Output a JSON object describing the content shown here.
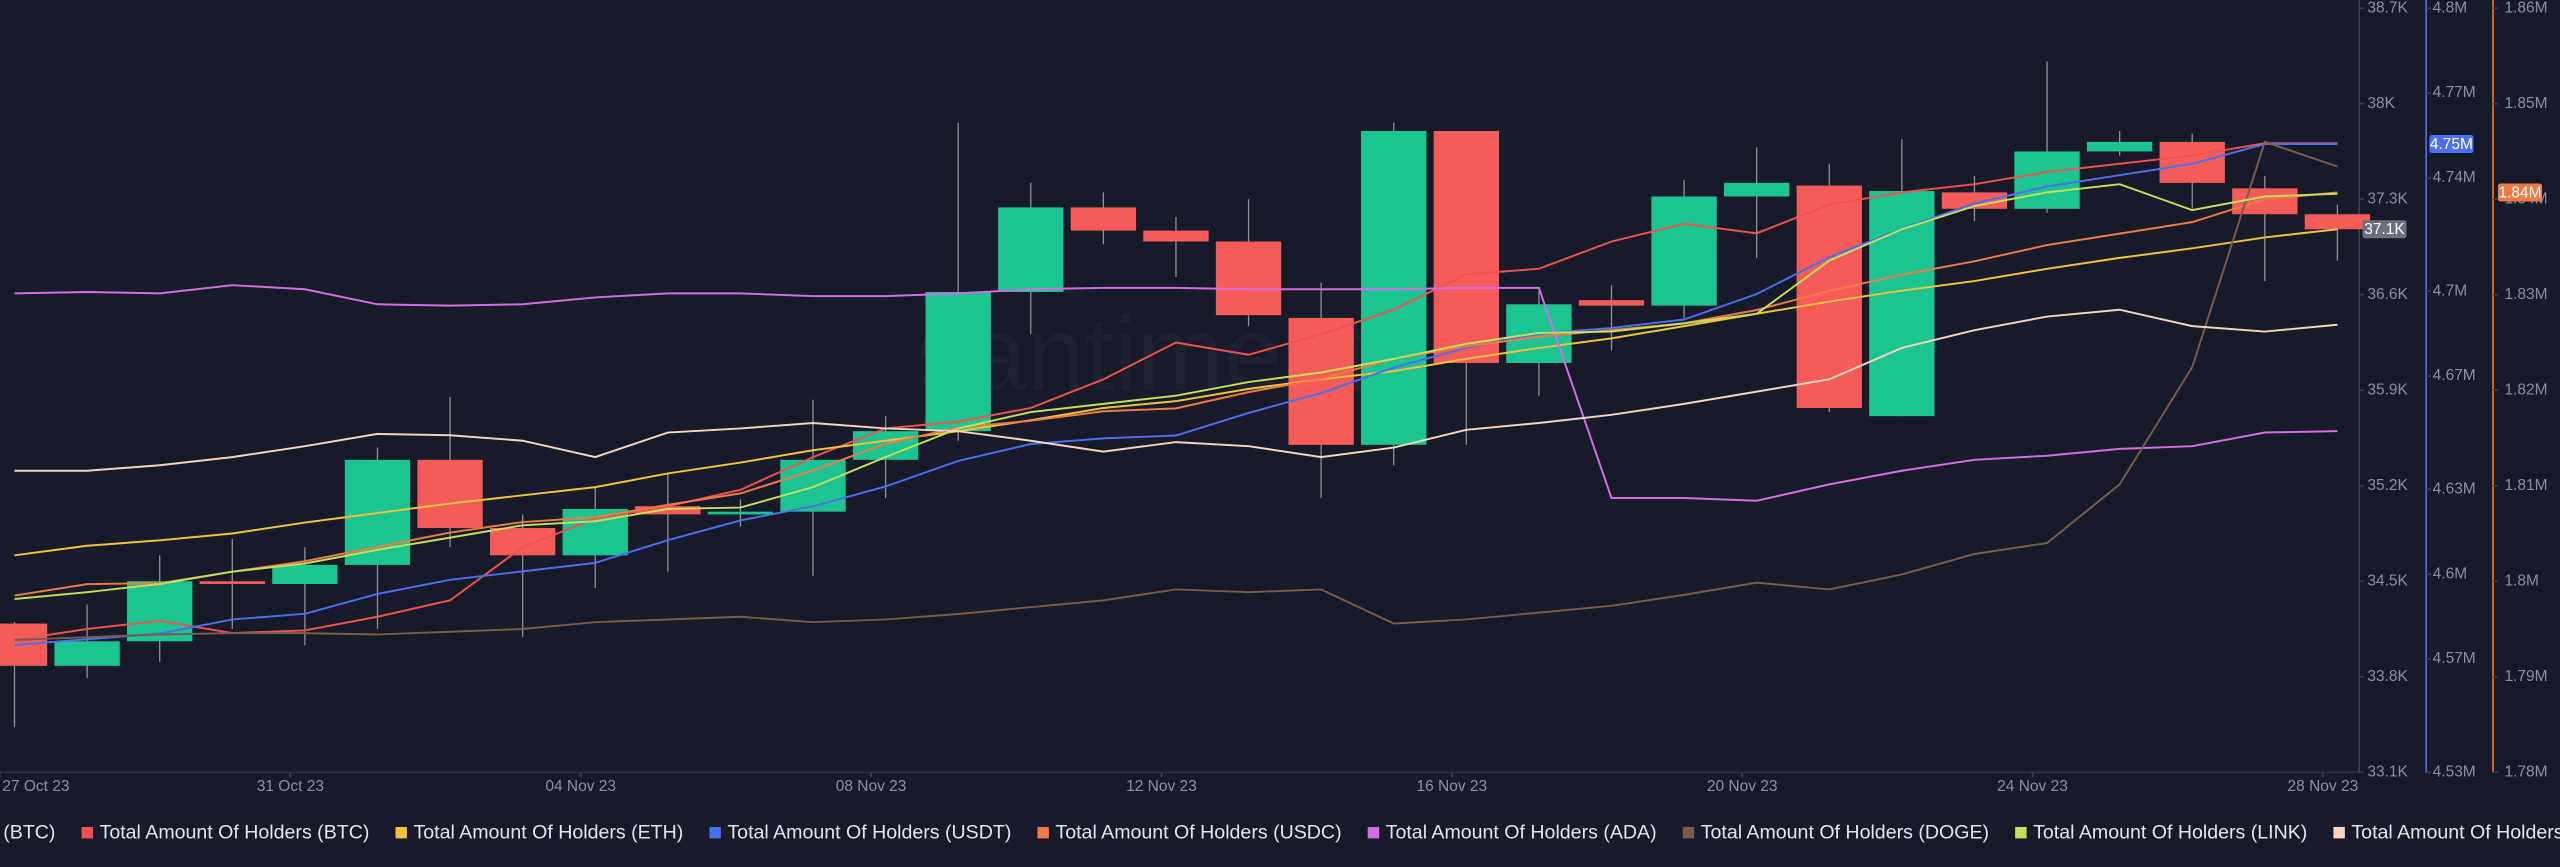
{
  "chart_data": {
    "type": "candlestick",
    "watermark": "santiment",
    "x": [
      0,
      1,
      2,
      3,
      4,
      5,
      6,
      7,
      8,
      9,
      10,
      11,
      12,
      13,
      14,
      15,
      16,
      17,
      18,
      19,
      20,
      21,
      22,
      23,
      24,
      25,
      26,
      27,
      28,
      29,
      30,
      31,
      32
    ],
    "xlim": [
      -0.2,
      32.3
    ],
    "xticks": [
      {
        "value": -0.2,
        "label": "27 Oct 23"
      },
      {
        "value": 3.8,
        "label": "31 Oct 23"
      },
      {
        "value": 7.8,
        "label": "04 Nov 23"
      },
      {
        "value": 11.8,
        "label": "08 Nov 23"
      },
      {
        "value": 15.8,
        "label": "12 Nov 23"
      },
      {
        "value": 19.8,
        "label": "16 Nov 23"
      },
      {
        "value": 23.8,
        "label": "20 Nov 23"
      },
      {
        "value": 27.8,
        "label": "24 Nov 23"
      },
      {
        "value": 31.8,
        "label": "28 Nov 23"
      }
    ],
    "ylim": [
      33100,
      38700
    ],
    "yticks": [
      {
        "value": 38700,
        "label": "38.7K"
      },
      {
        "value": 38000,
        "label": "38K"
      },
      {
        "value": 37300,
        "label": "37.3K"
      },
      {
        "value": 36600,
        "label": "36.6K"
      },
      {
        "value": 35900,
        "label": "35.9K"
      },
      {
        "value": 35200,
        "label": "35.2K"
      },
      {
        "value": 34500,
        "label": "34.5K"
      },
      {
        "value": 33800,
        "label": "33.8K"
      },
      {
        "value": 33100,
        "label": "33.1K"
      }
    ],
    "y2lim": [
      4530000,
      4800000
    ],
    "y2ticks": [
      {
        "value": 4800000,
        "label": "4.8M"
      },
      {
        "value": 4770000,
        "label": "4.77M"
      },
      {
        "value": 4740000,
        "label": "4.74M"
      },
      {
        "value": 4700000,
        "label": "4.7M"
      },
      {
        "value": 4670000,
        "label": "4.67M"
      },
      {
        "value": 4630000,
        "label": "4.63M"
      },
      {
        "value": 4600000,
        "label": "4.6M"
      },
      {
        "value": 4570000,
        "label": "4.57M"
      },
      {
        "value": 4530000,
        "label": "4.53M"
      }
    ],
    "y2color": "#4a6ff0",
    "y3lim": [
      1780000,
      1860000
    ],
    "y3ticks": [
      {
        "value": 1860000,
        "label": "1.86M"
      },
      {
        "value": 1850000,
        "label": "1.85M"
      },
      {
        "value": 1840000,
        "label": "1.84M"
      },
      {
        "value": 1830000,
        "label": "1.83M"
      },
      {
        "value": 1820000,
        "label": "1.82M"
      },
      {
        "value": 1810000,
        "label": "1.81M"
      },
      {
        "value": 1800000,
        "label": "1.8M"
      },
      {
        "value": 1790000,
        "label": "1.79M"
      },
      {
        "value": 1780000,
        "label": "1.78M"
      }
    ],
    "y3color": "#f07a45",
    "badges": [
      {
        "value": 37080,
        "label": "37.1K",
        "axis": "y",
        "color": "#6c707b"
      },
      {
        "value": 4752000,
        "label": "4.75M",
        "axis": "y2",
        "color": "#4a6ff0"
      },
      {
        "value": 1840700,
        "label": "1.84M",
        "axis": "y3",
        "color": "#f07a45"
      }
    ],
    "series": [
      {
        "name": "(BTC)",
        "type": "candlestick",
        "up_color": "#1cc492",
        "down_color": "#f55c59",
        "wick_color": "#8e909a",
        "open": [
          34190,
          33880,
          34060,
          34500,
          34480,
          34620,
          35390,
          34890,
          34690,
          35050,
          34990,
          35010,
          35390,
          35600,
          36620,
          37240,
          37070,
          36990,
          36430,
          35500,
          37800,
          36100,
          36560,
          36520,
          37320,
          37400,
          35710,
          37350,
          37230,
          37650,
          37720,
          37380,
          37190
        ],
        "high": [
          34200,
          34330,
          34690,
          34810,
          34750,
          35480,
          35850,
          34990,
          35190,
          35290,
          35100,
          35830,
          35710,
          37860,
          37420,
          37350,
          37170,
          37300,
          36690,
          37860,
          37800,
          36630,
          36670,
          37440,
          37680,
          37560,
          37740,
          37470,
          38310,
          37800,
          37780,
          37470,
          37260
        ],
        "low": [
          33430,
          33790,
          33910,
          34150,
          34030,
          34150,
          34750,
          34090,
          34450,
          34570,
          34900,
          34540,
          35110,
          35530,
          36310,
          36970,
          36730,
          36370,
          35110,
          35350,
          35500,
          35860,
          36190,
          36430,
          36870,
          35740,
          35710,
          37140,
          37200,
          37620,
          37230,
          36700,
          36850
        ],
        "close": [
          33880,
          34060,
          34500,
          34480,
          34620,
          35390,
          34890,
          34690,
          35030,
          34990,
          35010,
          35390,
          35600,
          36620,
          37240,
          37070,
          36990,
          36450,
          35500,
          37800,
          36100,
          36530,
          36520,
          37320,
          37420,
          35770,
          37360,
          37230,
          37650,
          37720,
          37420,
          37190,
          37080
        ]
      },
      {
        "name": "Total Amount Of Holders (BTC)",
        "type": "line",
        "color": "#f0524f",
        "axis": "y",
        "values": [
          34070,
          34150,
          34210,
          34120,
          34140,
          34240,
          34360,
          34750,
          34960,
          35050,
          35170,
          35410,
          35620,
          35670,
          35770,
          35980,
          36250,
          36160,
          36310,
          36490,
          36750,
          36790,
          36990,
          37120,
          37050,
          37260,
          37350,
          37410,
          37500,
          37560,
          37620,
          37710,
          37710
        ]
      },
      {
        "name": "Total Amount Of Holders (ETH)",
        "type": "line",
        "color": "#f2c23a",
        "axis": "y",
        "values": [
          34690,
          34760,
          34800,
          34850,
          34930,
          35000,
          35070,
          35130,
          35190,
          35290,
          35370,
          35460,
          35530,
          35600,
          35680,
          35770,
          35820,
          35910,
          35980,
          36040,
          36130,
          36210,
          36280,
          36370,
          36460,
          36550,
          36630,
          36700,
          36790,
          36870,
          36940,
          37020,
          37080
        ]
      },
      {
        "name": "Total Amount Of Holders (USDT)",
        "type": "line",
        "color": "#4a6ff0",
        "axis": "y2",
        "values": [
          4575000,
          4577000,
          4579000,
          4584000,
          4586000,
          4593000,
          4598000,
          4601000,
          4604000,
          4612000,
          4619000,
          4624000,
          4631000,
          4640000,
          4646000,
          4648000,
          4649000,
          4657000,
          4664000,
          4673000,
          4680000,
          4685000,
          4687000,
          4690000,
          4699000,
          4712000,
          4722000,
          4731000,
          4737000,
          4741000,
          4745000,
          4752000,
          4752000
        ]
      },
      {
        "name": "Total Amount Of Holders (USDC)",
        "type": "line",
        "color": "#f07a45",
        "axis": "y3",
        "values": [
          1798500,
          1799700,
          1799800,
          1801000,
          1802100,
          1803600,
          1805100,
          1806200,
          1806700,
          1808000,
          1809200,
          1811600,
          1814400,
          1816100,
          1816800,
          1817800,
          1818100,
          1819800,
          1821200,
          1823300,
          1824600,
          1825600,
          1826300,
          1827000,
          1828400,
          1830400,
          1832100,
          1833500,
          1835200,
          1836400,
          1837600,
          1840000,
          1840700
        ]
      },
      {
        "name": "Total Amount Of Holders (ADA)",
        "type": "line",
        "color": "#d56ce6",
        "axis": "y",
        "values": [
          36610,
          36620,
          36610,
          36670,
          36640,
          36530,
          36520,
          36530,
          36580,
          36610,
          36610,
          36590,
          36590,
          36610,
          36640,
          36650,
          36650,
          36640,
          36640,
          36640,
          36650,
          36650,
          35110,
          35110,
          35090,
          35210,
          35310,
          35390,
          35420,
          35470,
          35490,
          35590,
          35600
        ]
      },
      {
        "name": "Total Amount Of Holders (DOGE)",
        "type": "line",
        "color": "#7a5b4e",
        "axis": "y",
        "values": [
          34070,
          34090,
          34110,
          34120,
          34120,
          34110,
          34130,
          34150,
          34200,
          34220,
          34240,
          34200,
          34220,
          34260,
          34310,
          34360,
          34440,
          34420,
          34440,
          34190,
          34220,
          34270,
          34320,
          34400,
          34490,
          34440,
          34550,
          34700,
          34780,
          35210,
          36070,
          37720,
          37540
        ]
      },
      {
        "name": "Total Amount Of Holders (LINK)",
        "type": "line",
        "color": "#c6df58",
        "axis": "y",
        "values": [
          34370,
          34420,
          34480,
          34570,
          34630,
          34730,
          34820,
          34910,
          34940,
          35030,
          35040,
          35190,
          35410,
          35620,
          35740,
          35800,
          35860,
          35960,
          36030,
          36130,
          36240,
          36320,
          36330,
          36390,
          36460,
          36850,
          37080,
          37250,
          37350,
          37410,
          37220,
          37320,
          37340
        ]
      },
      {
        "name": "Total Amount Of Holders (",
        "type": "line",
        "color": "#f5d5c2",
        "axis": "y",
        "values": [
          35310,
          35310,
          35350,
          35410,
          35490,
          35580,
          35570,
          35530,
          35410,
          35590,
          35620,
          35660,
          35620,
          35600,
          35530,
          35450,
          35520,
          35490,
          35410,
          35480,
          35610,
          35660,
          35720,
          35800,
          35890,
          35980,
          36210,
          36340,
          36440,
          36490,
          36370,
          36330,
          36380
        ]
      }
    ]
  }
}
